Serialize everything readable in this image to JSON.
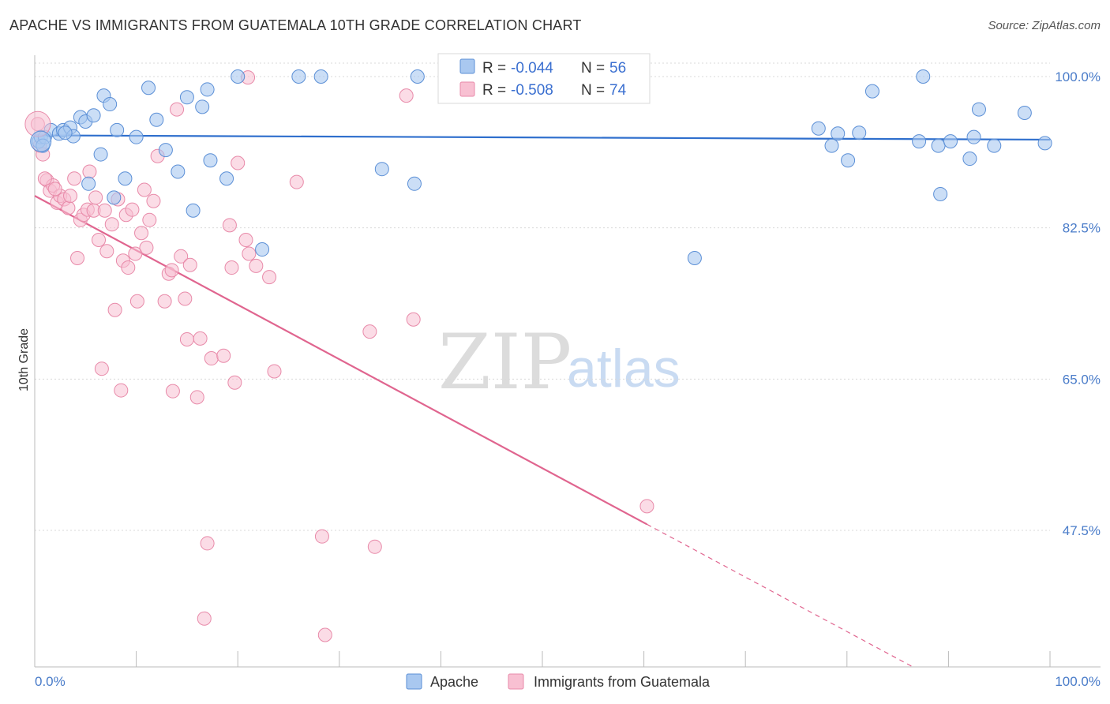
{
  "title": "APACHE VS IMMIGRANTS FROM GUATEMALA 10TH GRADE CORRELATION CHART",
  "source": "Source: ZipAtlas.com",
  "watermark": {
    "zip": "ZIP",
    "atlas": "atlas"
  },
  "colors": {
    "apache_fill": "#a9c8f0",
    "apache_stroke": "#5b8fd6",
    "apache_line": "#2f6fcd",
    "guat_fill": "#f8c0d2",
    "guat_stroke": "#e88aa9",
    "guat_line": "#e0658f",
    "grid": "#d9d9d9",
    "tick_text": "#4a7cc9"
  },
  "legend": {
    "rows": [
      {
        "r_label": "R =",
        "r_value": "-0.044",
        "n_label": "N =",
        "n_value": "56"
      },
      {
        "r_label": "R =",
        "r_value": "-0.508",
        "n_label": "N =",
        "n_value": "74"
      }
    ]
  },
  "chart_data": {
    "type": "scatter",
    "title": "APACHE VS IMMIGRANTS FROM GUATEMALA 10TH GRADE CORRELATION CHART",
    "xlabel": "",
    "ylabel": "10th Grade",
    "xlim": [
      0,
      100
    ],
    "ylim": [
      32,
      102
    ],
    "x_tick_labels": [
      "0.0%",
      "100.0%"
    ],
    "y_ticks": [
      100.0,
      82.5,
      65.0,
      47.5
    ],
    "y_tick_labels": [
      "100.0%",
      "82.5%",
      "65.0%",
      "47.5%"
    ],
    "grid": true,
    "legend_position": "top-center",
    "series": [
      {
        "name": "Apache",
        "trend": {
          "x": [
            0,
            100
          ],
          "y": [
            93.2,
            92.7
          ]
        },
        "points": [
          [
            0.4,
            92.5
          ],
          [
            0.6,
            93.0
          ],
          [
            1.0,
            93.0
          ],
          [
            1.6,
            93.8
          ],
          [
            2.4,
            93.4
          ],
          [
            2.8,
            93.8
          ],
          [
            3.5,
            94.1
          ],
          [
            3.8,
            93.1
          ],
          [
            4.5,
            95.3
          ],
          [
            5.0,
            94.8
          ],
          [
            5.3,
            87.6
          ],
          [
            5.8,
            95.5
          ],
          [
            6.5,
            91.0
          ],
          [
            6.8,
            97.8
          ],
          [
            7.4,
            96.8
          ],
          [
            7.8,
            86.0
          ],
          [
            8.1,
            93.8
          ],
          [
            8.9,
            88.2
          ],
          [
            10.0,
            93.0
          ],
          [
            11.2,
            98.7
          ],
          [
            12.0,
            95.0
          ],
          [
            12.9,
            91.5
          ],
          [
            14.1,
            89.0
          ],
          [
            15.0,
            97.6
          ],
          [
            15.6,
            84.5
          ],
          [
            16.5,
            96.5
          ],
          [
            17.0,
            98.5
          ],
          [
            17.3,
            90.3
          ],
          [
            18.9,
            88.2
          ],
          [
            20.0,
            100.0
          ],
          [
            22.4,
            80.0
          ],
          [
            26.0,
            100.0
          ],
          [
            28.2,
            100.0
          ],
          [
            34.2,
            89.3
          ],
          [
            37.4,
            87.6
          ],
          [
            37.7,
            100.0
          ],
          [
            65.0,
            79.0
          ],
          [
            77.2,
            94.0
          ],
          [
            78.5,
            92.0
          ],
          [
            79.1,
            93.4
          ],
          [
            80.1,
            90.3
          ],
          [
            81.2,
            93.5
          ],
          [
            82.5,
            98.3
          ],
          [
            87.1,
            92.5
          ],
          [
            87.5,
            100.0
          ],
          [
            89.0,
            92.0
          ],
          [
            89.2,
            86.4
          ],
          [
            90.2,
            92.5
          ],
          [
            92.1,
            90.5
          ],
          [
            92.5,
            93.0
          ],
          [
            93.0,
            96.2
          ],
          [
            94.5,
            92.0
          ],
          [
            97.5,
            95.8
          ],
          [
            99.5,
            92.3
          ],
          [
            0.8,
            92.0
          ],
          [
            3.0,
            93.5
          ]
        ]
      },
      {
        "name": "Immigrants from Guatemala",
        "trend": {
          "x": [
            0,
            60.3
          ],
          "y": [
            86.2,
            48.2
          ],
          "x_dashed": [
            60.3,
            100
          ],
          "y_dashed": [
            48.2,
            23.2
          ]
        },
        "points": [
          [
            0.3,
            94.5
          ],
          [
            0.5,
            92.0
          ],
          [
            0.8,
            91.0
          ],
          [
            1.2,
            88.0
          ],
          [
            1.5,
            86.8
          ],
          [
            1.8,
            87.4
          ],
          [
            2.2,
            85.4
          ],
          [
            2.5,
            86.2
          ],
          [
            2.9,
            85.8
          ],
          [
            3.3,
            84.8
          ],
          [
            3.5,
            86.2
          ],
          [
            3.9,
            88.2
          ],
          [
            4.2,
            79.0
          ],
          [
            4.5,
            83.4
          ],
          [
            4.8,
            84.0
          ],
          [
            5.2,
            84.6
          ],
          [
            5.4,
            89.0
          ],
          [
            5.8,
            84.5
          ],
          [
            6.0,
            86.0
          ],
          [
            6.3,
            81.1
          ],
          [
            6.6,
            66.2
          ],
          [
            6.9,
            84.5
          ],
          [
            7.1,
            79.8
          ],
          [
            7.6,
            82.9
          ],
          [
            7.9,
            73.0
          ],
          [
            8.2,
            85.8
          ],
          [
            8.5,
            63.7
          ],
          [
            8.7,
            78.7
          ],
          [
            9.0,
            84.0
          ],
          [
            9.2,
            77.9
          ],
          [
            9.6,
            84.6
          ],
          [
            9.9,
            79.5
          ],
          [
            10.1,
            74.0
          ],
          [
            10.5,
            81.9
          ],
          [
            10.8,
            86.9
          ],
          [
            11.0,
            80.2
          ],
          [
            11.3,
            83.4
          ],
          [
            11.7,
            85.6
          ],
          [
            12.1,
            90.8
          ],
          [
            12.8,
            74.0
          ],
          [
            13.2,
            77.2
          ],
          [
            13.5,
            77.6
          ],
          [
            13.6,
            63.6
          ],
          [
            14.0,
            96.2
          ],
          [
            14.4,
            79.2
          ],
          [
            14.8,
            74.3
          ],
          [
            15.0,
            69.6
          ],
          [
            15.3,
            78.2
          ],
          [
            16.0,
            62.9
          ],
          [
            16.3,
            69.7
          ],
          [
            16.7,
            37.3
          ],
          [
            17.0,
            46.0
          ],
          [
            17.4,
            67.4
          ],
          [
            18.6,
            67.7
          ],
          [
            19.2,
            82.8
          ],
          [
            19.4,
            77.9
          ],
          [
            19.7,
            64.6
          ],
          [
            20.0,
            90.0
          ],
          [
            20.8,
            81.1
          ],
          [
            21.1,
            79.5
          ],
          [
            21.8,
            78.1
          ],
          [
            23.1,
            76.8
          ],
          [
            23.6,
            65.9
          ],
          [
            25.8,
            87.8
          ],
          [
            28.3,
            46.8
          ],
          [
            28.6,
            35.4
          ],
          [
            33.0,
            70.5
          ],
          [
            33.5,
            45.6
          ],
          [
            36.6,
            97.8
          ],
          [
            37.3,
            71.9
          ],
          [
            60.3,
            50.3
          ],
          [
            21.0,
            99.9
          ],
          [
            1.0,
            88.2
          ],
          [
            2.0,
            87.0
          ]
        ]
      }
    ]
  },
  "bottom_legend": [
    {
      "label": "Apache"
    },
    {
      "label": "Immigrants from Guatemala"
    }
  ]
}
